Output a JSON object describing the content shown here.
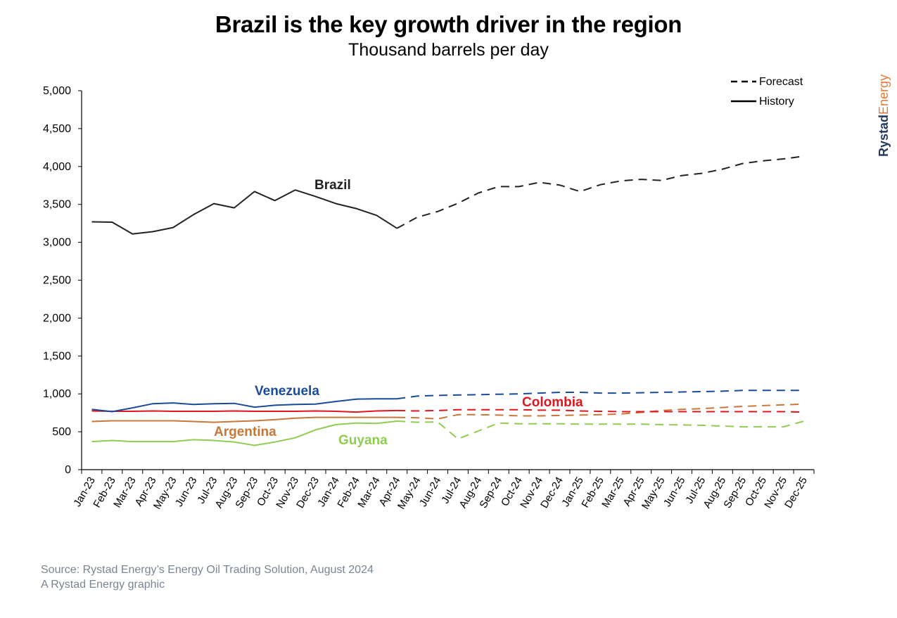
{
  "title": "Brazil is the key growth driver in the region",
  "subtitle": "Thousand barrels per day",
  "brand": {
    "part1": "Rystad",
    "part2": "Energy"
  },
  "source": {
    "line1": "Source: Rystad Energy’s Energy Oil Trading Solution, August 2024",
    "line2": "A Rystad Energy graphic"
  },
  "legend": {
    "forecast": "Forecast",
    "history": "History"
  },
  "colors": {
    "Brazil": "#222222",
    "Venezuela": "#1a4a9a",
    "Colombia": "#e0151f",
    "Argentina": "#c8773a",
    "Guyana": "#8fcc4f"
  },
  "chart_data": {
    "type": "line",
    "x": [
      "Jan-23",
      "Feb-23",
      "Mar-23",
      "Apr-23",
      "May-23",
      "Jun-23",
      "Jul-23",
      "Aug-23",
      "Sep-23",
      "Oct-23",
      "Nov-23",
      "Dec-23",
      "Jan-24",
      "Feb-24",
      "Mar-24",
      "Apr-24",
      "May-24",
      "Jun-24",
      "Jul-24",
      "Aug-24",
      "Sep-24",
      "Oct-24",
      "Nov-24",
      "Dec-24",
      "Jan-25",
      "Feb-25",
      "Mar-25",
      "Apr-25",
      "May-25",
      "Jun-25",
      "Jul-25",
      "Aug-25",
      "Sep-25",
      "Oct-25",
      "Nov-25",
      "Dec-25"
    ],
    "ylim": [
      0,
      5000
    ],
    "yticks": [
      "0",
      "500",
      "1,000",
      "1,500",
      "2,000",
      "2,500",
      "3,000",
      "3,500",
      "4,000",
      "4,500",
      "5,000"
    ],
    "history_end": "Apr-24",
    "legend_position": "top-right",
    "grid": false,
    "series": [
      {
        "name": "Brazil",
        "values": [
          3270,
          3265,
          3110,
          3140,
          3195,
          3365,
          3510,
          3455,
          3670,
          3550,
          3690,
          3605,
          3510,
          3445,
          3355,
          3185,
          3330,
          3405,
          3515,
          3650,
          3735,
          3735,
          3790,
          3755,
          3670,
          3760,
          3810,
          3830,
          3815,
          3880,
          3910,
          3965,
          4040,
          4075,
          4100,
          4135
        ]
      },
      {
        "name": "Venezuela",
        "values": [
          795,
          765,
          815,
          870,
          880,
          860,
          870,
          875,
          825,
          850,
          860,
          865,
          900,
          930,
          935,
          935,
          970,
          980,
          985,
          990,
          995,
          1000,
          1010,
          1020,
          1020,
          1010,
          1010,
          1015,
          1020,
          1025,
          1030,
          1035,
          1045,
          1045,
          1045,
          1045
        ]
      },
      {
        "name": "Colombia",
        "values": [
          775,
          770,
          770,
          775,
          770,
          770,
          770,
          775,
          770,
          770,
          770,
          775,
          770,
          760,
          775,
          780,
          775,
          780,
          790,
          790,
          790,
          790,
          785,
          785,
          775,
          770,
          765,
          765,
          765,
          765,
          765,
          765,
          765,
          765,
          765,
          760
        ]
      },
      {
        "name": "Argentina",
        "values": [
          635,
          645,
          645,
          645,
          645,
          635,
          625,
          635,
          645,
          660,
          680,
          690,
          690,
          690,
          690,
          690,
          685,
          670,
          725,
          725,
          720,
          710,
          710,
          715,
          720,
          725,
          735,
          755,
          780,
          795,
          805,
          820,
          835,
          845,
          855,
          865
        ]
      },
      {
        "name": "Guyana",
        "values": [
          370,
          385,
          370,
          370,
          370,
          395,
          385,
          365,
          320,
          365,
          420,
          525,
          595,
          615,
          610,
          640,
          625,
          630,
          405,
          510,
          615,
          605,
          605,
          605,
          600,
          600,
          600,
          600,
          595,
          590,
          585,
          575,
          565,
          565,
          565,
          640
        ]
      }
    ]
  }
}
